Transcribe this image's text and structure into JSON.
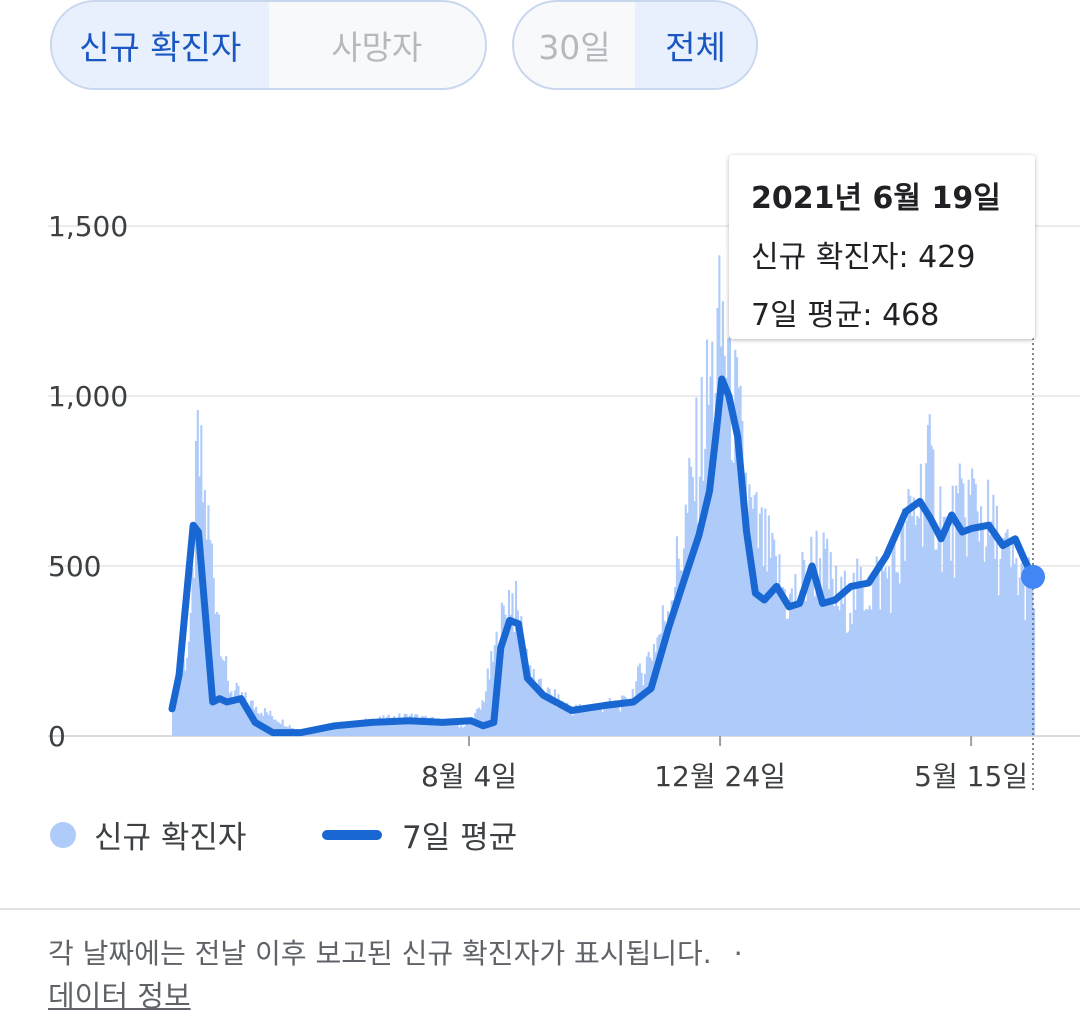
{
  "toggles": {
    "metric": [
      {
        "label": "신규 확진자",
        "active": true
      },
      {
        "label": "사망자",
        "active": false
      }
    ],
    "range": [
      {
        "label": "30일",
        "active": false
      },
      {
        "label": "전체",
        "active": true
      }
    ]
  },
  "tooltip": {
    "date": "2021년 6월 19일",
    "new_cases": "신규 확진자: 429",
    "avg": "7일 평균: 468"
  },
  "legend": {
    "bars_label": "신규 확진자",
    "line_label": "7일 평균"
  },
  "footer": {
    "note": "각 날짜에는 전날 이후 보고된 신규 확진자가 표시됩니다.",
    "separator": "·",
    "link": "데이터 정보"
  },
  "colors": {
    "bar": "#aecbfa",
    "line": "#1967d2",
    "point": "#4285f4"
  },
  "chart_data": {
    "type": "bar",
    "title": "",
    "xlabel": "",
    "ylabel": "",
    "y_ticks": [
      "0",
      "500",
      "1,000",
      "1,500"
    ],
    "ylim": [
      0,
      1500
    ],
    "x_tick_labels": [
      "8월 4일",
      "12월 24일",
      "5월 15일"
    ],
    "x_date_range": [
      "2020-02-18",
      "2021-06-19"
    ],
    "legend_position": "bottom-left",
    "series": [
      {
        "name": "신규 확진자",
        "kind": "bar",
        "sampled_dates": [
          "2020-02-18",
          "2020-02-28",
          "2020-03-03",
          "2020-03-12",
          "2020-03-20",
          "2020-04-01",
          "2020-05-01",
          "2020-06-01",
          "2020-07-01",
          "2020-08-01",
          "2020-08-10",
          "2020-08-27",
          "2020-09-10",
          "2020-10-01",
          "2020-11-01",
          "2020-11-20",
          "2020-12-01",
          "2020-12-16",
          "2020-12-25",
          "2021-01-10",
          "2021-02-01",
          "2021-02-17",
          "2021-03-01",
          "2021-04-01",
          "2021-04-20",
          "2021-05-01",
          "2021-05-15",
          "2021-06-01",
          "2021-06-19"
        ],
        "values": [
          100,
          300,
          850,
          500,
          150,
          100,
          10,
          40,
          60,
          30,
          80,
          440,
          150,
          80,
          100,
          320,
          550,
          1000,
          1240,
          650,
          400,
          550,
          400,
          500,
          800,
          600,
          720,
          550,
          429
        ]
      },
      {
        "name": "7일 평균",
        "kind": "line",
        "dates": [
          "2020-02-18",
          "2020-02-22",
          "2020-02-26",
          "2020-03-01",
          "2020-03-04",
          "2020-03-08",
          "2020-03-12",
          "2020-03-16",
          "2020-03-20",
          "2020-03-28",
          "2020-04-05",
          "2020-04-15",
          "2020-05-01",
          "2020-05-20",
          "2020-06-10",
          "2020-07-01",
          "2020-07-20",
          "2020-08-05",
          "2020-08-12",
          "2020-08-18",
          "2020-08-22",
          "2020-08-27",
          "2020-09-01",
          "2020-09-06",
          "2020-09-15",
          "2020-10-01",
          "2020-10-20",
          "2020-11-05",
          "2020-11-15",
          "2020-11-25",
          "2020-12-05",
          "2020-12-12",
          "2020-12-18",
          "2020-12-22",
          "2020-12-25",
          "2020-12-29",
          "2021-01-03",
          "2021-01-08",
          "2021-01-13",
          "2021-01-18",
          "2021-01-25",
          "2021-02-01",
          "2021-02-07",
          "2021-02-14",
          "2021-02-20",
          "2021-02-27",
          "2021-03-08",
          "2021-03-18",
          "2021-03-28",
          "2021-04-08",
          "2021-04-16",
          "2021-04-22",
          "2021-04-28",
          "2021-05-04",
          "2021-05-10",
          "2021-05-15",
          "2021-05-25",
          "2021-06-02",
          "2021-06-09",
          "2021-06-14",
          "2021-06-19"
        ],
        "values": [
          80,
          180,
          400,
          620,
          600,
          350,
          100,
          110,
          100,
          110,
          40,
          10,
          10,
          30,
          40,
          45,
          40,
          45,
          30,
          40,
          260,
          340,
          330,
          170,
          120,
          75,
          90,
          100,
          140,
          320,
          480,
          590,
          720,
          900,
          1050,
          1000,
          880,
          600,
          420,
          400,
          440,
          380,
          390,
          500,
          390,
          400,
          440,
          450,
          530,
          660,
          690,
          640,
          580,
          650,
          600,
          610,
          620,
          560,
          580,
          520,
          468
        ]
      }
    ]
  }
}
